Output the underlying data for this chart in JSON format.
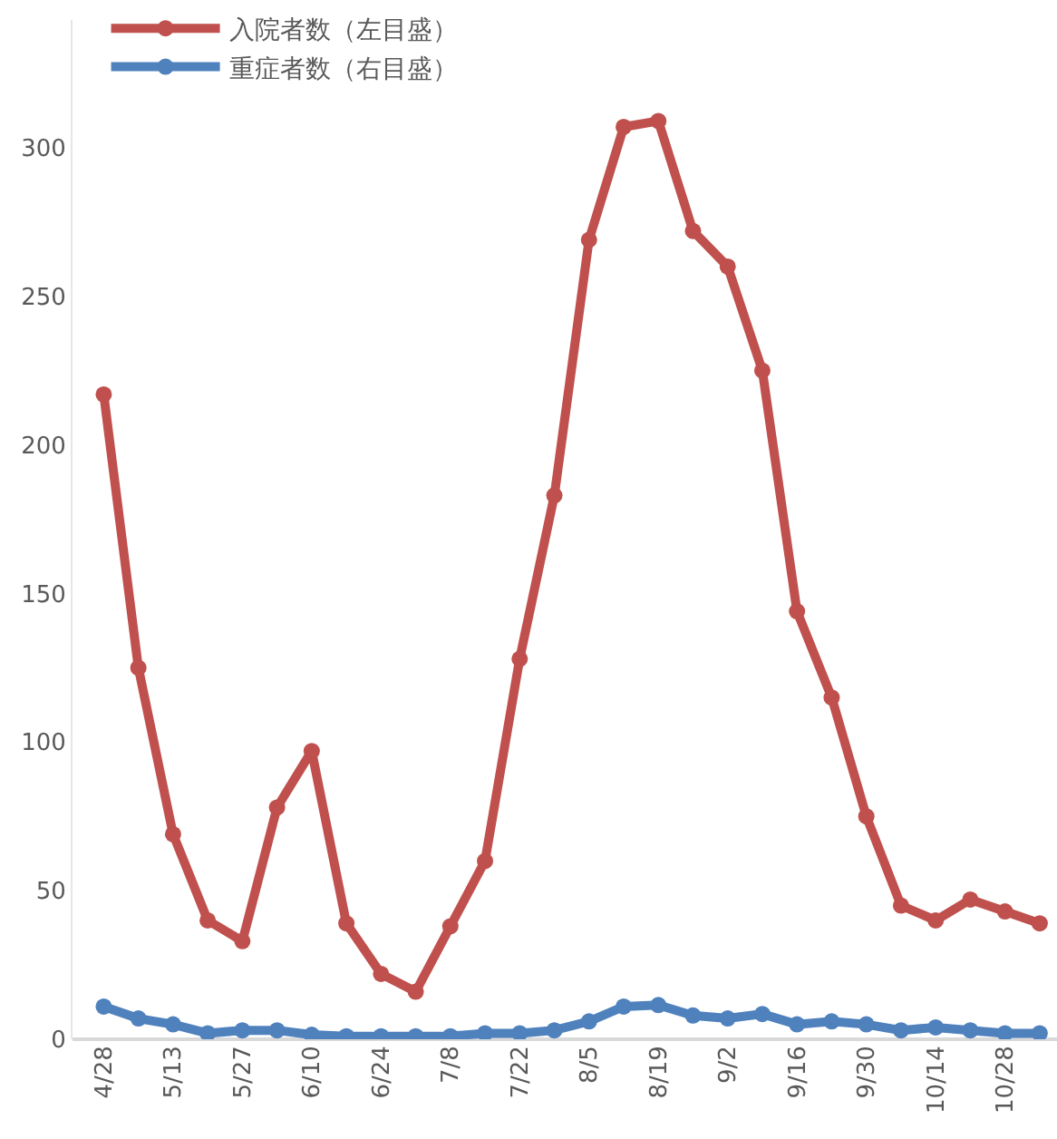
{
  "chart_data": {
    "type": "line",
    "categories": [
      "4/28",
      null,
      "5/13",
      null,
      "5/27",
      null,
      "6/10",
      null,
      "6/24",
      null,
      "7/8",
      null,
      "7/22",
      null,
      "8/5",
      null,
      "8/19",
      null,
      "9/2",
      null,
      "9/16",
      null,
      "9/30",
      null,
      "10/14",
      null,
      "10/28",
      null
    ],
    "series": [
      {
        "name": "入院者数（左目盛）",
        "color": "#c0504d",
        "values": [
          217,
          125,
          69,
          40,
          33,
          78,
          97,
          39,
          22,
          16,
          38,
          60,
          128,
          183,
          269,
          307,
          309,
          272,
          260,
          225,
          144,
          115,
          75,
          45,
          40,
          47,
          43,
          39
        ]
      },
      {
        "name": "重症者数（右目盛）",
        "color": "#4f81bd",
        "values": [
          11,
          7,
          5,
          2,
          3,
          3,
          1.5,
          1,
          1,
          1,
          1,
          2,
          2,
          3,
          6,
          11,
          11.5,
          8,
          7,
          8.5,
          5,
          6,
          5,
          3,
          4,
          3,
          2,
          2
        ]
      }
    ],
    "ylim": [
      0,
      343
    ],
    "yticks": [
      0,
      50,
      100,
      150,
      200,
      250,
      300
    ],
    "grid": false,
    "legend": "top left",
    "marker": "circle",
    "line_style": "solid"
  }
}
